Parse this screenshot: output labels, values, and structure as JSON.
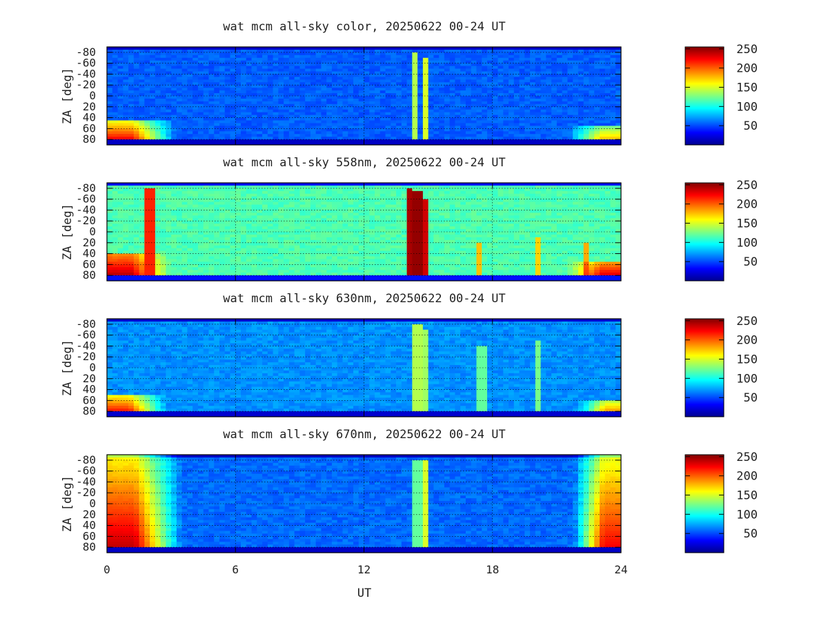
{
  "chart_data": {
    "type": "heatmap",
    "xlabel": "UT",
    "ylabel": "ZA [deg]",
    "xlim": [
      0,
      24
    ],
    "ylim": [
      -90,
      90
    ],
    "x_ticks": [
      0,
      6,
      12,
      18,
      24
    ],
    "y_ticks": [
      -80,
      -60,
      -40,
      -20,
      0,
      20,
      40,
      60,
      80
    ],
    "y_tick_labels": [
      "-80",
      "-60",
      "-40",
      "-20",
      "0",
      "20",
      "40",
      "60",
      "80"
    ],
    "colorbar_ticks": [
      50,
      100,
      150,
      200,
      250
    ],
    "colorbar_range": [
      0,
      255
    ],
    "colormap": [
      "#00008f",
      "#0000ff",
      "#0080ff",
      "#00ffff",
      "#80ff80",
      "#ffff00",
      "#ff8000",
      "#ff0000",
      "#800000"
    ],
    "grid": true,
    "panels": [
      {
        "title": "wat mcm all-sky color, 20250622 00-24 UT",
        "background_level": 55,
        "horizon_level": 15,
        "features": [
          {
            "kind": "twilight",
            "ut": [
              0,
              3.2
            ],
            "za": [
              45,
              82
            ],
            "peak": 230
          },
          {
            "kind": "twilight",
            "ut": [
              21.5,
              24
            ],
            "za": [
              55,
              82
            ],
            "peak": 180
          },
          {
            "kind": "streak",
            "ut": 14.3,
            "width": 0.12,
            "za": [
              -80,
              80
            ],
            "level": 140
          },
          {
            "kind": "streak",
            "ut": 14.8,
            "width": 0.1,
            "za": [
              -70,
              80
            ],
            "level": 150
          }
        ]
      },
      {
        "title": "wat mcm all-sky 558nm, 20250622 00-24 UT",
        "background_level": 115,
        "horizon_level": 35,
        "features": [
          {
            "kind": "twilight",
            "ut": [
              0,
              3
            ],
            "za": [
              40,
              82
            ],
            "peak": 245
          },
          {
            "kind": "streak",
            "ut": 2,
            "width": 0.35,
            "za": [
              -80,
              80
            ],
            "level": 215
          },
          {
            "kind": "streak",
            "ut": 14.1,
            "width": 0.12,
            "za": [
              -80,
              80
            ],
            "level": 245
          },
          {
            "kind": "streak",
            "ut": 14.5,
            "width": 0.1,
            "za": [
              -75,
              80
            ],
            "level": 250
          },
          {
            "kind": "streak",
            "ut": 14.9,
            "width": 0.1,
            "za": [
              -60,
              80
            ],
            "level": 235
          },
          {
            "kind": "streak",
            "ut": 17.3,
            "width": 0.1,
            "za": [
              20,
              80
            ],
            "level": 175
          },
          {
            "kind": "streak",
            "ut": 20.2,
            "width": 0.1,
            "za": [
              10,
              80
            ],
            "level": 170
          },
          {
            "kind": "streak",
            "ut": 22.3,
            "width": 0.1,
            "za": [
              20,
              80
            ],
            "level": 180
          },
          {
            "kind": "twilight",
            "ut": [
              21.5,
              24
            ],
            "za": [
              55,
              82
            ],
            "peak": 235
          }
        ]
      },
      {
        "title": "wat mcm all-sky 630nm, 20250622 00-24 UT",
        "background_level": 68,
        "horizon_level": 18,
        "features": [
          {
            "kind": "twilight",
            "ut": [
              0,
              2.8
            ],
            "za": [
              50,
              82
            ],
            "peak": 225
          },
          {
            "kind": "twilight",
            "ut": [
              22,
              24
            ],
            "za": [
              58,
              82
            ],
            "peak": 190
          },
          {
            "kind": "streak",
            "ut": 14.5,
            "width": 0.15,
            "za": [
              -80,
              80
            ],
            "level": 140
          },
          {
            "kind": "streak",
            "ut": 14.9,
            "width": 0.1,
            "za": [
              -70,
              80
            ],
            "level": 135
          },
          {
            "kind": "streak",
            "ut": 17.5,
            "width": 0.1,
            "za": [
              -40,
              80
            ],
            "level": 120
          },
          {
            "kind": "streak",
            "ut": 20.2,
            "width": 0.1,
            "za": [
              -50,
              80
            ],
            "level": 125
          }
        ]
      },
      {
        "title": "wat mcm all-sky 670nm, 20250622 00-24 UT",
        "background_level": 58,
        "horizon_level": 15,
        "features": [
          {
            "kind": "twilight",
            "ut": [
              0,
              3.5
            ],
            "za": [
              -90,
              82
            ],
            "peak": 240
          },
          {
            "kind": "twilight",
            "ut": [
              21.8,
              24
            ],
            "za": [
              -90,
              82
            ],
            "peak": 225
          },
          {
            "kind": "streak",
            "ut": 14.5,
            "width": 0.12,
            "za": [
              -80,
              80
            ],
            "level": 120
          },
          {
            "kind": "streak",
            "ut": 14.9,
            "width": 0.08,
            "za": [
              -80,
              80
            ],
            "level": 150
          }
        ]
      }
    ]
  }
}
